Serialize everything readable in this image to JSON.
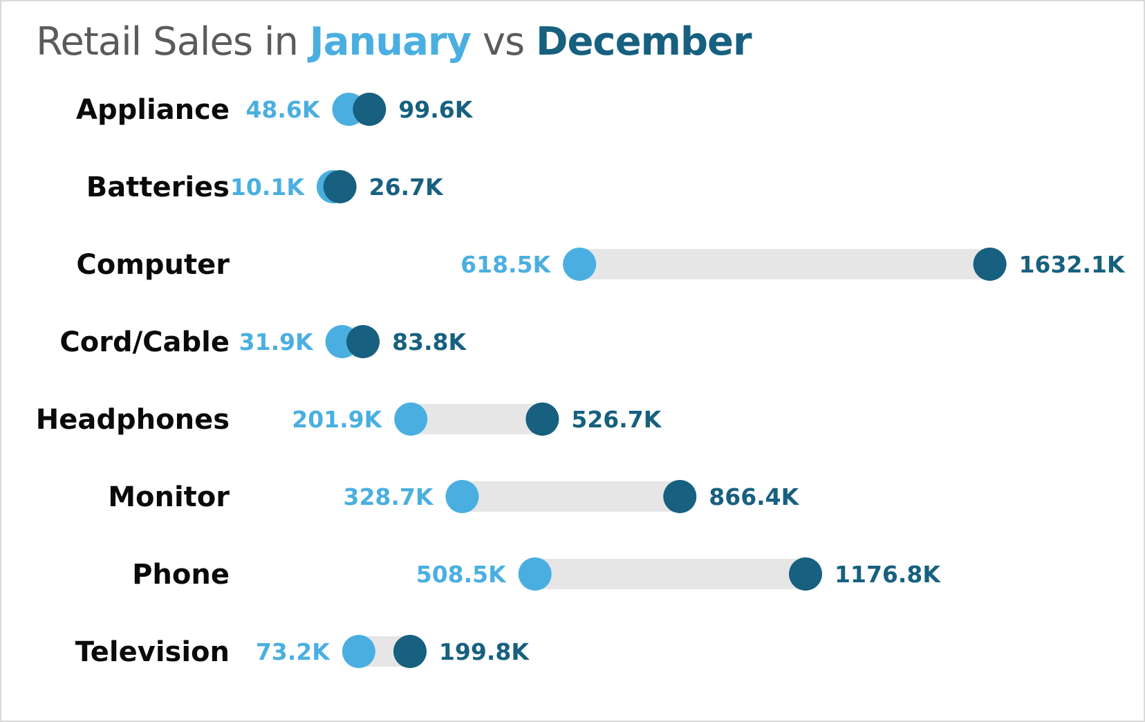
{
  "title": {
    "prefix": "Retail Sales in ",
    "jan": "January",
    "mid": " vs ",
    "dec": "December"
  },
  "colors": {
    "january": "#4aafe0",
    "december": "#17607f",
    "connector": "#e6e6e6",
    "label": "#0a0a0a"
  },
  "chart_data": {
    "type": "dumbbell",
    "title": "Retail Sales in January vs December",
    "categories": [
      "Appliance",
      "Batteries",
      "Computer",
      "Cord/Cable",
      "Headphones",
      "Monitor",
      "Phone",
      "Television"
    ],
    "series": [
      {
        "name": "January",
        "values": [
          48.6,
          10.1,
          618.5,
          31.9,
          201.9,
          328.7,
          508.5,
          73.2
        ],
        "labels": [
          "48.6K",
          "10.1K",
          "618.5K",
          "31.9K",
          "201.9K",
          "328.7K",
          "508.5K",
          "73.2K"
        ]
      },
      {
        "name": "December",
        "values": [
          99.6,
          26.7,
          1632.1,
          83.8,
          526.7,
          866.4,
          1176.8,
          199.8
        ],
        "labels": [
          "99.6K",
          "26.7K",
          "1632.1K",
          "83.8K",
          "526.7K",
          "866.4K",
          "1176.8K",
          "199.8K"
        ]
      }
    ],
    "unit": "K",
    "xlim": [
      0,
      1650
    ],
    "grid": false,
    "legend": "title"
  }
}
